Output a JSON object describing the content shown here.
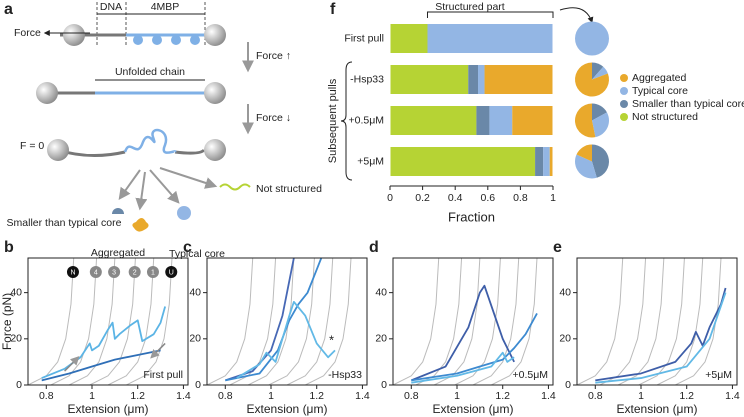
{
  "diagram": {
    "panel_label": "a",
    "dna": "DNA",
    "protein": "4MBP",
    "force": "Force",
    "force_up": "Force ↑",
    "unfolded": "Unfolded chain",
    "force_down": "Force ↓",
    "zero": "F = 0",
    "smaller": "Smaller than typical core",
    "not_structured": "Not structured",
    "aggregated": "Aggregated",
    "typical": "Typical core"
  },
  "chart_data": [
    {
      "type": "stackedbar",
      "panel_label": "f",
      "categories": [
        "First pull",
        "-Hsp33",
        "+0.5μM",
        "+5μM"
      ],
      "series": [
        {
          "name": "Not structured",
          "color": "#b6d334",
          "values": [
            0.23,
            0.48,
            0.53,
            0.89
          ]
        },
        {
          "name": "Smaller than typical core",
          "color": "#6a88a8",
          "values": [
            0,
            0.06,
            0.08,
            0.05
          ]
        },
        {
          "name": "Typical core",
          "color": "#93b6e4",
          "values": [
            0.77,
            0.04,
            0.14,
            0.04
          ]
        },
        {
          "name": "Aggregated",
          "color": "#e9a92c",
          "values": [
            0,
            0.42,
            0.25,
            0.02
          ]
        }
      ],
      "xlim": [
        0,
        1
      ],
      "xticks": [
        0,
        0.2,
        0.4,
        0.6,
        0.8,
        1
      ],
      "xlabel": "Fraction",
      "ylabel": "Subsequent pulls",
      "annotation": "Structured part"
    },
    {
      "type": "line",
      "panel_label": "b",
      "xlim": [
        0.72,
        1.42
      ],
      "ylim": [
        0,
        55
      ],
      "xticks": [
        0.8,
        1,
        1.2,
        1.4
      ],
      "yticks": [
        0,
        20,
        40
      ],
      "xlabel": "Extension (μm)",
      "ylabel": "Force (pN)",
      "condition": "First pull",
      "curve_labels": [
        "N",
        "4",
        "3",
        "2",
        "1",
        "U"
      ],
      "series": [
        {
          "color": "#bbbbbb",
          "x": [
            0.72,
            0.8,
            0.85,
            0.885,
            0.908,
            0.92
          ],
          "values": [
            0,
            4,
            10,
            20,
            35,
            55
          ]
        },
        {
          "color": "#bbbbbb",
          "x": [
            0.82,
            0.9,
            0.95,
            0.985,
            1.008,
            1.02
          ],
          "values": [
            0,
            4,
            10,
            20,
            35,
            55
          ]
        },
        {
          "color": "#bbbbbb",
          "x": [
            0.9,
            0.98,
            1.03,
            1.065,
            1.088,
            1.1
          ],
          "values": [
            0,
            4,
            10,
            20,
            35,
            55
          ]
        },
        {
          "color": "#bbbbbb",
          "x": [
            0.99,
            1.07,
            1.12,
            1.155,
            1.178,
            1.19
          ],
          "values": [
            0,
            4,
            10,
            20,
            35,
            55
          ]
        },
        {
          "color": "#bbbbbb",
          "x": [
            1.07,
            1.15,
            1.2,
            1.235,
            1.258,
            1.27
          ],
          "values": [
            0,
            4,
            10,
            20,
            35,
            55
          ]
        },
        {
          "color": "#bbbbbb",
          "x": [
            1.15,
            1.23,
            1.28,
            1.315,
            1.338,
            1.35
          ],
          "values": [
            0,
            4,
            10,
            20,
            35,
            55
          ]
        },
        {
          "color": "#2f6fb7",
          "x": [
            0.78,
            0.9,
            1.0,
            1.1,
            1.2,
            1.3
          ],
          "values": [
            2,
            5,
            8,
            11,
            13,
            15
          ]
        },
        {
          "color": "#5bb4e5",
          "x": [
            0.78,
            0.88,
            0.95,
            0.99,
            1.0,
            1.03,
            1.07,
            1.09,
            1.1,
            1.12,
            1.17,
            1.2,
            1.22,
            1.27,
            1.3,
            1.32
          ],
          "values": [
            3,
            7,
            12,
            18,
            15,
            17,
            24,
            27,
            20,
            22,
            26,
            28,
            19,
            22,
            27,
            34
          ]
        }
      ]
    },
    {
      "type": "line",
      "panel_label": "c",
      "xlim": [
        0.72,
        1.42
      ],
      "ylim": [
        0,
        55
      ],
      "xticks": [
        0.8,
        1,
        1.2,
        1.4
      ],
      "yticks": [
        0,
        20,
        40
      ],
      "xlabel": "Extension (μm)",
      "condition": "-Hsp33",
      "annotation": "*",
      "series": [
        {
          "color": "#bbbbbb",
          "x": [
            0.72,
            0.8,
            0.85,
            0.885,
            0.908,
            0.92
          ],
          "values": [
            0,
            4,
            10,
            20,
            35,
            55
          ]
        },
        {
          "color": "#bbbbbb",
          "x": [
            0.82,
            0.9,
            0.95,
            0.985,
            1.008,
            1.02
          ],
          "values": [
            0,
            4,
            10,
            20,
            35,
            55
          ]
        },
        {
          "color": "#bbbbbb",
          "x": [
            0.9,
            0.98,
            1.03,
            1.065,
            1.088,
            1.1
          ],
          "values": [
            0,
            4,
            10,
            20,
            35,
            55
          ]
        },
        {
          "color": "#bbbbbb",
          "x": [
            0.99,
            1.07,
            1.12,
            1.155,
            1.178,
            1.19
          ],
          "values": [
            0,
            4,
            10,
            20,
            35,
            55
          ]
        },
        {
          "color": "#bbbbbb",
          "x": [
            1.07,
            1.15,
            1.2,
            1.235,
            1.258,
            1.27
          ],
          "values": [
            0,
            4,
            10,
            20,
            35,
            55
          ]
        },
        {
          "color": "#bbbbbb",
          "x": [
            1.15,
            1.23,
            1.28,
            1.315,
            1.338,
            1.35
          ],
          "values": [
            0,
            4,
            10,
            20,
            35,
            55
          ]
        },
        {
          "color": "#4768b5",
          "x": [
            0.8,
            0.92,
            1.0,
            1.05,
            1.08,
            1.1
          ],
          "values": [
            2,
            6,
            15,
            30,
            45,
            55
          ]
        },
        {
          "color": "#3d8ad0",
          "x": [
            0.8,
            0.95,
            1.03,
            1.08,
            1.12,
            1.16,
            1.2,
            1.22
          ],
          "values": [
            2,
            5,
            15,
            28,
            35,
            40,
            50,
            55
          ]
        },
        {
          "color": "#62b9e6",
          "x": [
            0.85,
            0.95,
            0.98,
            1.02,
            1.08,
            1.1,
            1.15,
            1.2,
            1.25,
            1.28
          ],
          "values": [
            3,
            9,
            14,
            10,
            30,
            36,
            30,
            18,
            12,
            15
          ]
        }
      ]
    },
    {
      "type": "line",
      "panel_label": "d",
      "xlim": [
        0.72,
        1.42
      ],
      "ylim": [
        0,
        55
      ],
      "xticks": [
        0.8,
        1,
        1.2,
        1.4
      ],
      "yticks": [
        0,
        20,
        40
      ],
      "xlabel": "Extension (μm)",
      "condition": "+0.5μM",
      "series": [
        {
          "color": "#bbbbbb",
          "x": [
            0.72,
            0.8,
            0.85,
            0.885,
            0.908,
            0.92
          ],
          "values": [
            0,
            4,
            10,
            20,
            35,
            55
          ]
        },
        {
          "color": "#bbbbbb",
          "x": [
            0.82,
            0.9,
            0.95,
            0.985,
            1.008,
            1.02
          ],
          "values": [
            0,
            4,
            10,
            20,
            35,
            55
          ]
        },
        {
          "color": "#bbbbbb",
          "x": [
            0.9,
            0.98,
            1.03,
            1.065,
            1.088,
            1.1
          ],
          "values": [
            0,
            4,
            10,
            20,
            35,
            55
          ]
        },
        {
          "color": "#bbbbbb",
          "x": [
            0.99,
            1.07,
            1.12,
            1.155,
            1.178,
            1.19
          ],
          "values": [
            0,
            4,
            10,
            20,
            35,
            55
          ]
        },
        {
          "color": "#bbbbbb",
          "x": [
            1.07,
            1.15,
            1.2,
            1.235,
            1.258,
            1.27
          ],
          "values": [
            0,
            4,
            10,
            20,
            35,
            55
          ]
        },
        {
          "color": "#bbbbbb",
          "x": [
            1.15,
            1.23,
            1.28,
            1.315,
            1.338,
            1.35
          ],
          "values": [
            0,
            4,
            10,
            20,
            35,
            55
          ]
        },
        {
          "color": "#3e5ea8",
          "x": [
            0.8,
            0.95,
            1.05,
            1.1,
            1.12,
            1.2,
            1.25
          ],
          "values": [
            2,
            8,
            25,
            40,
            43,
            20,
            10
          ]
        },
        {
          "color": "#3d8ad0",
          "x": [
            0.8,
            1.0,
            1.1,
            1.2,
            1.25,
            1.3,
            1.35
          ],
          "values": [
            2,
            5,
            8,
            11,
            16,
            22,
            31
          ]
        },
        {
          "color": "#62b9e6",
          "x": [
            0.8,
            1.0,
            1.15,
            1.2,
            1.22,
            1.25
          ],
          "values": [
            1,
            4,
            8,
            14,
            10,
            12
          ]
        }
      ]
    },
    {
      "type": "line",
      "panel_label": "e",
      "xlim": [
        0.72,
        1.42
      ],
      "ylim": [
        0,
        55
      ],
      "xticks": [
        0.8,
        1,
        1.2,
        1.4
      ],
      "yticks": [
        0,
        20,
        40
      ],
      "xlabel": "Extension (μm)",
      "condition": "+5μM",
      "series": [
        {
          "color": "#bbbbbb",
          "x": [
            0.72,
            0.8,
            0.85,
            0.885,
            0.908,
            0.92
          ],
          "values": [
            0,
            4,
            10,
            20,
            35,
            55
          ]
        },
        {
          "color": "#bbbbbb",
          "x": [
            0.82,
            0.9,
            0.95,
            0.985,
            1.008,
            1.02
          ],
          "values": [
            0,
            4,
            10,
            20,
            35,
            55
          ]
        },
        {
          "color": "#bbbbbb",
          "x": [
            0.9,
            0.98,
            1.03,
            1.065,
            1.088,
            1.1
          ],
          "values": [
            0,
            4,
            10,
            20,
            35,
            55
          ]
        },
        {
          "color": "#bbbbbb",
          "x": [
            0.99,
            1.07,
            1.12,
            1.155,
            1.178,
            1.19
          ],
          "values": [
            0,
            4,
            10,
            20,
            35,
            55
          ]
        },
        {
          "color": "#bbbbbb",
          "x": [
            1.07,
            1.15,
            1.2,
            1.235,
            1.258,
            1.27
          ],
          "values": [
            0,
            4,
            10,
            20,
            35,
            55
          ]
        },
        {
          "color": "#bbbbbb",
          "x": [
            1.15,
            1.23,
            1.28,
            1.315,
            1.338,
            1.35
          ],
          "values": [
            0,
            4,
            10,
            20,
            35,
            55
          ]
        },
        {
          "color": "#3e5ea8",
          "x": [
            0.8,
            1.0,
            1.15,
            1.22,
            1.24,
            1.27,
            1.3,
            1.35,
            1.37
          ],
          "values": [
            2,
            5,
            10,
            18,
            23,
            17,
            25,
            35,
            42
          ]
        },
        {
          "color": "#62b9e6",
          "x": [
            0.8,
            1.0,
            1.2,
            1.3,
            1.37
          ],
          "values": [
            1,
            3,
            8,
            20,
            40
          ]
        }
      ]
    }
  ]
}
